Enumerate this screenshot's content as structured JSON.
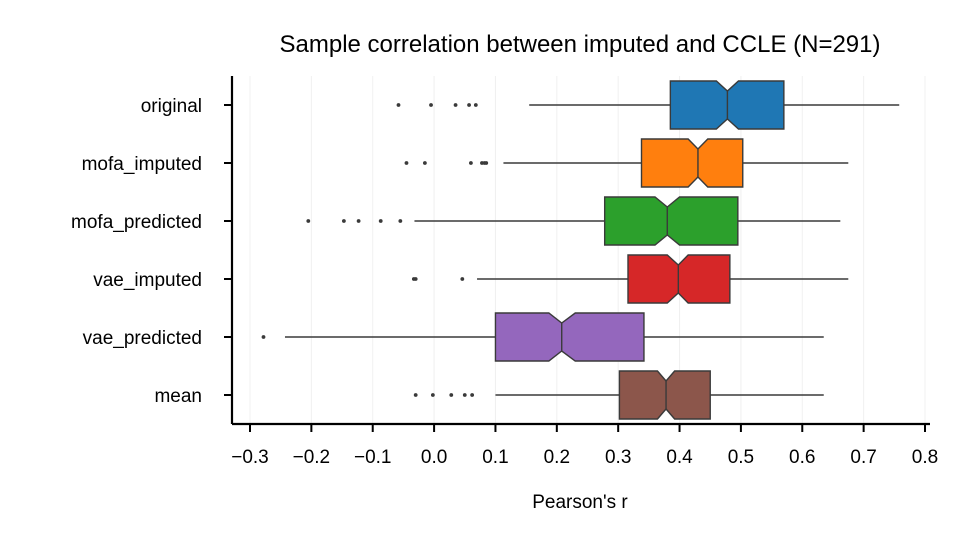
{
  "chart_data": {
    "type": "boxplot",
    "orientation": "horizontal",
    "notched": true,
    "title": "Sample correlation between imputed and CCLE (N=291)",
    "xlabel": "Pearson's r",
    "ylabel": "",
    "xlim": [
      -0.33,
      0.81
    ],
    "xticks": [
      -0.3,
      -0.2,
      -0.1,
      0.0,
      0.1,
      0.2,
      0.3,
      0.4,
      0.5,
      0.6,
      0.7,
      0.8
    ],
    "xtick_labels": [
      "−0.3",
      "−0.2",
      "−0.1",
      "0.0",
      "0.1",
      "0.2",
      "0.3",
      "0.4",
      "0.5",
      "0.6",
      "0.7",
      "0.8"
    ],
    "grid": "vertical, faint",
    "series": [
      {
        "name": "original",
        "color": "#1f77b4",
        "whisker_low": 0.155,
        "q1": 0.385,
        "median": 0.478,
        "q3": 0.57,
        "notch_low": 0.46,
        "notch_high": 0.496,
        "whisker_high": 0.758,
        "outliers": [
          -0.058,
          -0.005,
          0.035,
          0.057,
          0.068
        ]
      },
      {
        "name": "mofa_imputed",
        "color": "#ff7f0e",
        "whisker_low": 0.113,
        "q1": 0.338,
        "median": 0.43,
        "q3": 0.503,
        "notch_low": 0.414,
        "notch_high": 0.446,
        "whisker_high": 0.675,
        "outliers": [
          -0.045,
          -0.015,
          0.06,
          0.078,
          0.082,
          0.085
        ]
      },
      {
        "name": "mofa_predicted",
        "color": "#2ca02c",
        "whisker_low": -0.032,
        "q1": 0.278,
        "median": 0.38,
        "q3": 0.495,
        "notch_low": 0.36,
        "notch_high": 0.4,
        "whisker_high": 0.662,
        "outliers": [
          -0.205,
          -0.147,
          -0.123,
          -0.087,
          -0.055
        ]
      },
      {
        "name": "vae_imputed",
        "color": "#d62728",
        "whisker_low": 0.07,
        "q1": 0.316,
        "median": 0.398,
        "q3": 0.482,
        "notch_low": 0.38,
        "notch_high": 0.414,
        "whisker_high": 0.675,
        "outliers": [
          -0.033,
          -0.03,
          0.046
        ]
      },
      {
        "name": "vae_predicted",
        "color": "#9467bd",
        "whisker_low": -0.243,
        "q1": 0.1,
        "median": 0.208,
        "q3": 0.342,
        "notch_low": 0.187,
        "notch_high": 0.23,
        "whisker_high": 0.635,
        "outliers": [
          -0.278
        ]
      },
      {
        "name": "mean",
        "color": "#8c564b",
        "whisker_low": 0.1,
        "q1": 0.302,
        "median": 0.378,
        "q3": 0.45,
        "notch_low": 0.364,
        "notch_high": 0.392,
        "whisker_high": 0.635,
        "outliers": [
          -0.03,
          -0.002,
          0.028,
          0.05,
          0.062
        ]
      }
    ]
  }
}
